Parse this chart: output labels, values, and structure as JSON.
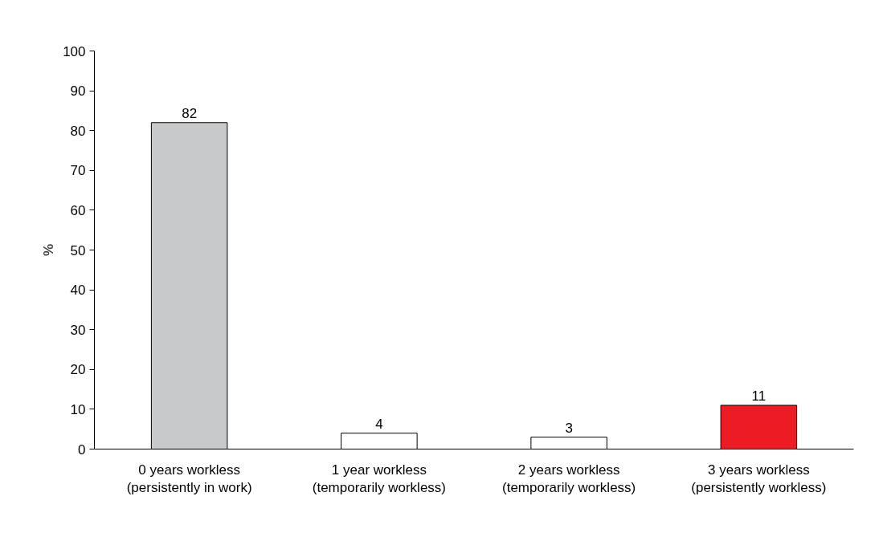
{
  "chart_data": {
    "type": "bar",
    "ylabel": "%",
    "categories": [
      "0 years workless\n(persistently in work)",
      "1 year workless\n(temporarily workless)",
      "2 years workless\n(temporarily workless)",
      "3 years workless\n(persistently workless)"
    ],
    "values": [
      82,
      4,
      3,
      11
    ],
    "colors": [
      "#c8c9cb",
      "#ffffff",
      "#ffffff",
      "#ed1c24"
    ],
    "ylim": [
      0,
      100
    ],
    "yticks": [
      0,
      10,
      20,
      30,
      40,
      50,
      60,
      70,
      80,
      90,
      100
    ],
    "data_labels": true
  }
}
